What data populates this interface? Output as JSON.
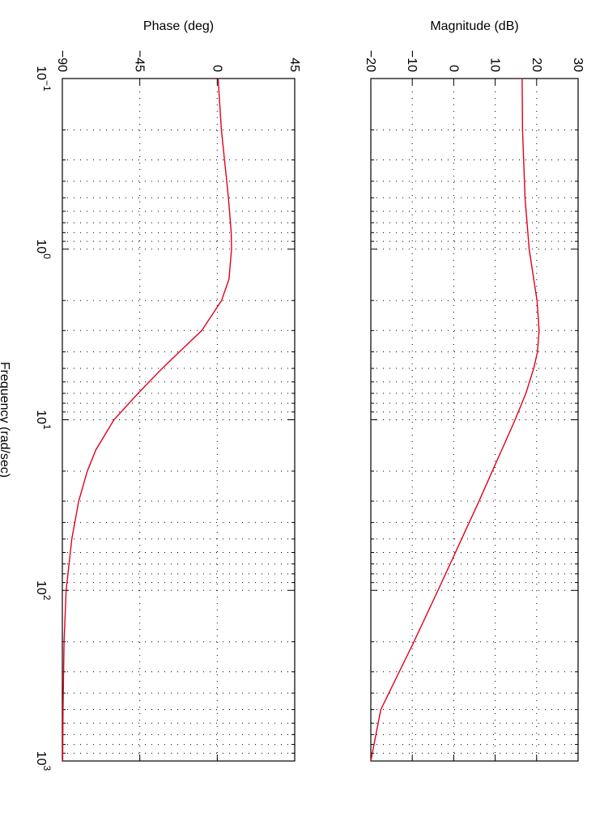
{
  "chart_data": [
    {
      "type": "line",
      "panel": "magnitude",
      "ylabel": "Magnitude (dB)",
      "xlabel": "Frequency  (rad/sec)",
      "xscale": "log",
      "xlim": [
        0.1,
        1000
      ],
      "ylim": [
        -20,
        30
      ],
      "yticks": [
        -20,
        -10,
        0,
        10,
        20,
        30
      ],
      "ytick_labels": [
        "−20",
        "−10",
        "0",
        "10",
        "20",
        "30"
      ],
      "grid": true,
      "series": [
        {
          "color": "#e0001b",
          "x": [
            0.1,
            0.2,
            0.5,
            1,
            1.5,
            2,
            3,
            4,
            5,
            7,
            10,
            15,
            20,
            30,
            50,
            100,
            200,
            500,
            1000
          ],
          "y": [
            16.5,
            16.6,
            17.2,
            18.2,
            19.3,
            20.1,
            20.6,
            20.2,
            19.3,
            17.4,
            14.8,
            11.6,
            9.3,
            6.1,
            1.9,
            -3.8,
            -9.6,
            -17.6,
            -20
          ]
        }
      ]
    },
    {
      "type": "line",
      "panel": "phase",
      "ylabel": "Phase (deg)",
      "xlabel": "Frequency  (rad/sec)",
      "xscale": "log",
      "xlim": [
        0.1,
        1000
      ],
      "ylim": [
        -90,
        45
      ],
      "yticks": [
        -90,
        -45,
        0,
        45
      ],
      "ytick_labels": [
        "−90",
        "−45",
        "0",
        "45"
      ],
      "grid": true,
      "series": [
        {
          "color": "#e0001b",
          "x": [
            0.1,
            0.2,
            0.5,
            0.8,
            1,
            1.5,
            2,
            3,
            4,
            5,
            7,
            10,
            15,
            20,
            30,
            50,
            100,
            200,
            500,
            1000
          ],
          "y": [
            0.5,
            2.4,
            6.5,
            8.1,
            8.3,
            6.8,
            2.5,
            -9,
            -22,
            -32,
            -46,
            -60,
            -70.5,
            -75.5,
            -80.5,
            -84.5,
            -87.8,
            -89,
            -89.6,
            -89.8
          ]
        }
      ]
    }
  ],
  "x_axis": {
    "xlabel": "Frequency  (rad/sec)",
    "decades": [
      {
        "base": "10",
        "exp": "−1"
      },
      {
        "base": "10",
        "exp": "0"
      },
      {
        "base": "10",
        "exp": "1"
      },
      {
        "base": "10",
        "exp": "2"
      },
      {
        "base": "10",
        "exp": "3"
      }
    ]
  }
}
